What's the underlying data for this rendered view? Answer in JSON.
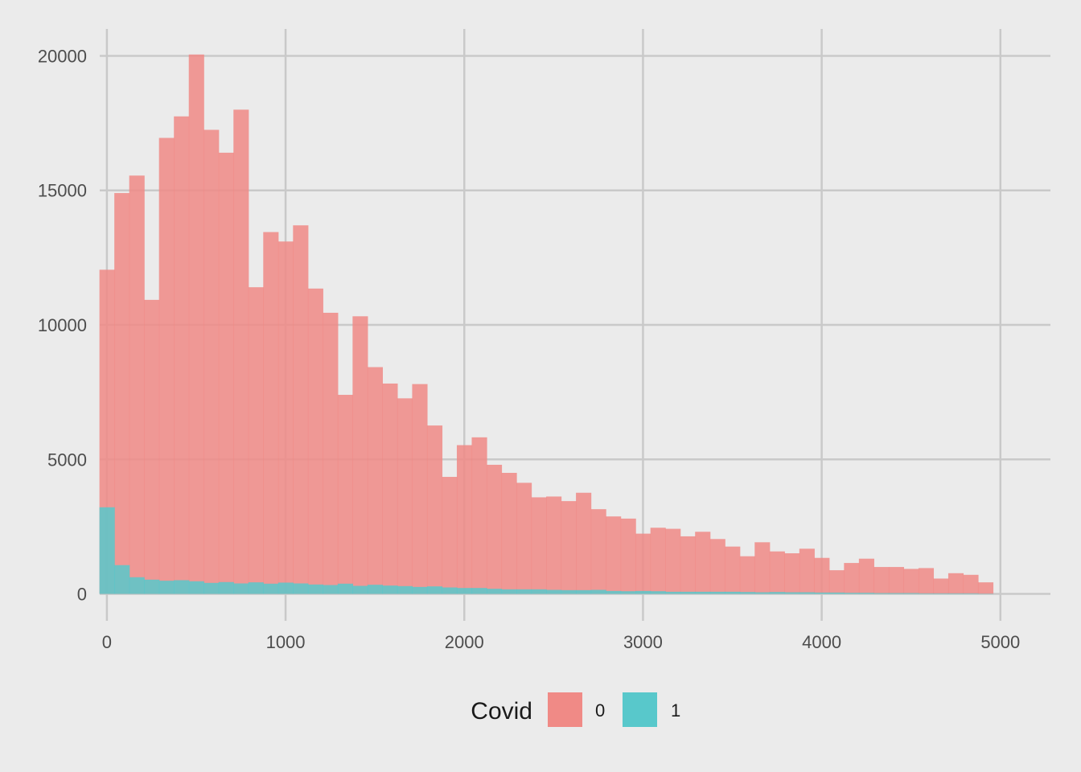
{
  "chart_data": {
    "type": "bar",
    "subtype": "overlaid-histogram",
    "title": "",
    "xlabel": "",
    "ylabel": "",
    "xlim": [
      -40,
      5280
    ],
    "ylim": [
      -1000,
      21000
    ],
    "x_ticks": [
      0,
      1000,
      2000,
      3000,
      4000,
      5000
    ],
    "x_tick_labels": [
      "0",
      "1000",
      "2000",
      "3000",
      "4000",
      "5000"
    ],
    "y_ticks": [
      0,
      5000,
      10000,
      15000,
      20000
    ],
    "y_tick_labels": [
      "0",
      "5000",
      "10000",
      "15000",
      "20000"
    ],
    "grid": true,
    "legend": {
      "title": "Covid",
      "position": "bottom",
      "entries": [
        {
          "label": "0",
          "color": "#f08a86"
        },
        {
          "label": "1",
          "color": "#58c8cb"
        }
      ]
    },
    "bin_width": 83.33,
    "bin_start": -41.67,
    "series": [
      {
        "name": "0",
        "color": "#f08a86",
        "values": [
          12050,
          14900,
          15550,
          10930,
          16950,
          17750,
          20050,
          17250,
          16400,
          18000,
          11400,
          13450,
          13100,
          13700,
          11350,
          10450,
          7400,
          10320,
          8430,
          7820,
          7270,
          7800,
          6260,
          4350,
          5530,
          5820,
          4800,
          4500,
          4130,
          3590,
          3620,
          3450,
          3760,
          3150,
          2880,
          2800,
          2240,
          2460,
          2420,
          2140,
          2310,
          2040,
          1760,
          1400,
          1920,
          1580,
          1510,
          1680,
          1340,
          880,
          1150,
          1310,
          1000,
          1000,
          930,
          960,
          570,
          770,
          710,
          430
        ]
      },
      {
        "name": "1",
        "color": "#58c8cb",
        "values": [
          3220,
          1070,
          620,
          530,
          490,
          510,
          470,
          410,
          440,
          390,
          430,
          380,
          420,
          390,
          350,
          330,
          380,
          300,
          340,
          310,
          290,
          260,
          280,
          240,
          220,
          220,
          190,
          170,
          170,
          170,
          150,
          140,
          140,
          150,
          110,
          100,
          110,
          100,
          80,
          80,
          80,
          80,
          80,
          70,
          60,
          70,
          60,
          60,
          50,
          50,
          40,
          40,
          30,
          30,
          30,
          20,
          20,
          20,
          20,
          10
        ]
      }
    ]
  }
}
